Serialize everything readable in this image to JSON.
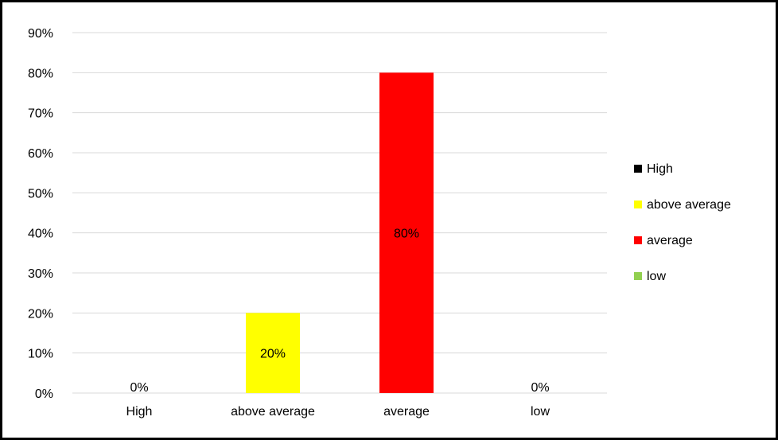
{
  "chart_data": {
    "type": "bar",
    "categories": [
      "High",
      "above average",
      "average",
      "low"
    ],
    "values": [
      0,
      20,
      80,
      0
    ],
    "data_labels": [
      "0%",
      "20%",
      "80%",
      "0%"
    ],
    "colors": [
      "#000000",
      "#ffff00",
      "#ff0000",
      "#92d050"
    ],
    "ylim": [
      0,
      90
    ],
    "y_ticks": [
      0,
      10,
      20,
      30,
      40,
      50,
      60,
      70,
      80,
      90
    ],
    "y_tick_labels": [
      "0%",
      "10%",
      "20%",
      "30%",
      "40%",
      "50%",
      "60%",
      "70%",
      "80%",
      "90%"
    ],
    "grid": true,
    "legend": {
      "placement": "right",
      "entries": [
        {
          "label": "High",
          "color": "#000000"
        },
        {
          "label": "above average",
          "color": "#ffff00"
        },
        {
          "label": "average",
          "color": "#ff0000"
        },
        {
          "label": "low",
          "color": "#92d050"
        }
      ]
    },
    "title": "",
    "xlabel": "",
    "ylabel": ""
  }
}
